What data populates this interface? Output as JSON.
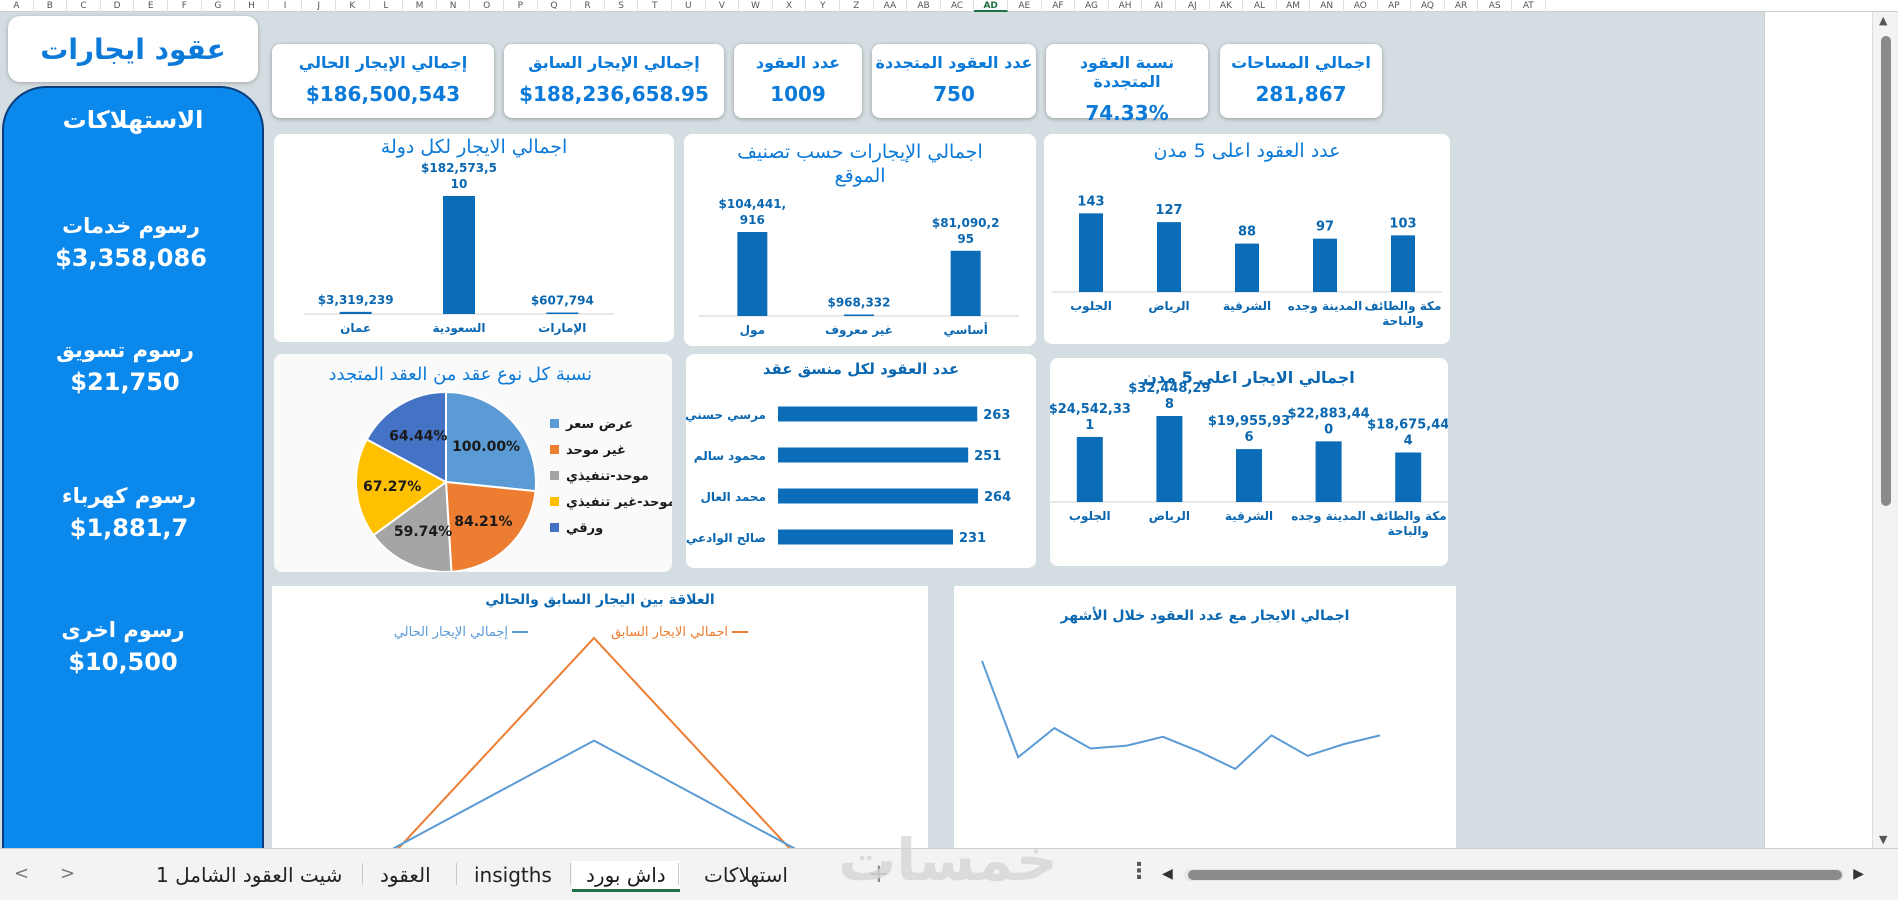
{
  "columns": [
    "A",
    "B",
    "C",
    "D",
    "E",
    "F",
    "G",
    "H",
    "I",
    "J",
    "K",
    "L",
    "M",
    "N",
    "O",
    "P",
    "Q",
    "R",
    "S",
    "T",
    "U",
    "V",
    "W",
    "X",
    "Y",
    "Z",
    "AA",
    "AB",
    "AC",
    "AD",
    "AE",
    "AF",
    "AG",
    "AH",
    "AI",
    "AJ",
    "AK",
    "AL",
    "AM",
    "AN",
    "AO",
    "AP",
    "AQ",
    "AR",
    "AS",
    "AT"
  ],
  "selected_column": "AD",
  "dashboard": {
    "title": "عقود ايجارات",
    "sidebar": {
      "title": "الاستهلاكات",
      "fees": [
        {
          "label": "رسوم خدمات",
          "value": "$3,358,086"
        },
        {
          "label": "رسوم تسويق",
          "value": "$21,750"
        },
        {
          "label": "رسوم كهرباء",
          "value": "$1,881,7"
        },
        {
          "label": "رسوم اخرى",
          "value": "$10,500"
        }
      ]
    },
    "kpis": [
      {
        "label": "إجمالي الإيجار الحالي",
        "value": "$186,500,543"
      },
      {
        "label": "إجمالي الإيجار السابق",
        "value": "$188,236,658.95"
      },
      {
        "label": "عدد العقود",
        "value": "1009"
      },
      {
        "label": "عدد العقود المتجددة",
        "value": "750"
      },
      {
        "label": "نسبة العقود المتجددة",
        "value": "74.33%"
      },
      {
        "label": "اجمالي المساحات",
        "value": "281,867"
      }
    ]
  },
  "chart_data": [
    {
      "id": "rent_by_country",
      "type": "bar",
      "title": "اجمالي الايجار لكل دولة",
      "categories": [
        "عمان",
        "السعودية",
        "الإمارات"
      ],
      "values": [
        3319239,
        182573510,
        607794
      ],
      "data_labels": [
        "$3,319,239",
        "$182,573,5|10",
        "$607,794"
      ]
    },
    {
      "id": "rent_by_location_class",
      "type": "bar",
      "title": "اجمالي الإيجارات حسب تصنيف الموقع",
      "categories": [
        "مول",
        "غير معروف",
        "أساسي"
      ],
      "values": [
        104441916,
        968332,
        81090295
      ],
      "data_labels": [
        "$104,441,|916",
        "$968,332",
        "$81,090,2|95"
      ]
    },
    {
      "id": "contracts_top5_cities",
      "type": "bar",
      "title": "عدد العقود  اعلى 5 مدن",
      "categories": [
        "الجلوب",
        "الرياض",
        "الشرقية",
        "المدينة وجده",
        "مكة والطائف|والباحة"
      ],
      "values": [
        143,
        127,
        88,
        97,
        103
      ],
      "ylim": [
        0,
        160
      ]
    },
    {
      "id": "renewal_type_share",
      "type": "pie",
      "title": "نسبة كل نوع عقد من العقد المتجدد",
      "labels": [
        "عرض سعر",
        "غير موحد",
        "موحد-تنفيذي",
        "موحد-غير تنفيذي",
        "ورقي"
      ],
      "values": [
        100.0,
        84.21,
        59.74,
        67.27,
        64.44
      ],
      "data_labels": [
        "100.00%",
        "84.21%",
        "59.74%",
        "67.27%",
        "64.44%"
      ],
      "colors": [
        "#5b9bd5",
        "#ed7d31",
        "#a5a5a5",
        "#ffc000",
        "#4472c4"
      ]
    },
    {
      "id": "contracts_per_coordinator",
      "type": "bar",
      "orientation": "horizontal",
      "title": "عدد العقود لكل منسق عقد",
      "categories": [
        "مرسي حسني",
        "محمود سالم",
        "محمد العال",
        "صالح الوادعي"
      ],
      "values": [
        263,
        251,
        264,
        231
      ]
    },
    {
      "id": "rent_top5_cities",
      "type": "bar",
      "title": "اجمالي الايجار   اعلى 5 مدن",
      "categories": [
        "الجلوب",
        "الرياض",
        "الشرقية",
        "المدينة وجده",
        "مكة والطائف|والباحة"
      ],
      "values": [
        24542331,
        32448298,
        19955936,
        22883440,
        18675444
      ],
      "data_labels": [
        "$24,542,33|1",
        "$32,448,29|8",
        "$19,955,93|6",
        "$22,883,44|0",
        "$18,675,44|4"
      ]
    },
    {
      "id": "prev_vs_current_rent",
      "type": "line",
      "title": "العلاقة بين اليجار السابق والحالي",
      "series": [
        {
          "name": "اجمالي الايجار السابق",
          "color": "#ed7d31",
          "values": [
            0.0,
            1.0,
            0.0
          ]
        },
        {
          "name": "إجمالي الإيجار الحالي",
          "color": "#5b9bd5",
          "values": [
            0.05,
            0.55,
            0.05
          ]
        }
      ]
    },
    {
      "id": "rent_by_month",
      "type": "line",
      "title": "اجمالي الايجار مع عدد العقود خلال الأشهر",
      "series": [
        {
          "name": "",
          "color": "#5b9bd5",
          "values": [
            0.98,
            0.32,
            0.52,
            0.38,
            0.4,
            0.46,
            0.36,
            0.24,
            0.47,
            0.33,
            0.41,
            0.47
          ]
        }
      ]
    }
  ],
  "sheet_tabs": [
    {
      "label": "شيت العقود الشامل 1",
      "active": false
    },
    {
      "label": "العقود",
      "active": false
    },
    {
      "label": "insigths",
      "active": false
    },
    {
      "label": "داش بورد",
      "active": true
    },
    {
      "label": "استهلاكات",
      "active": false
    }
  ],
  "watermark": "خمسات"
}
